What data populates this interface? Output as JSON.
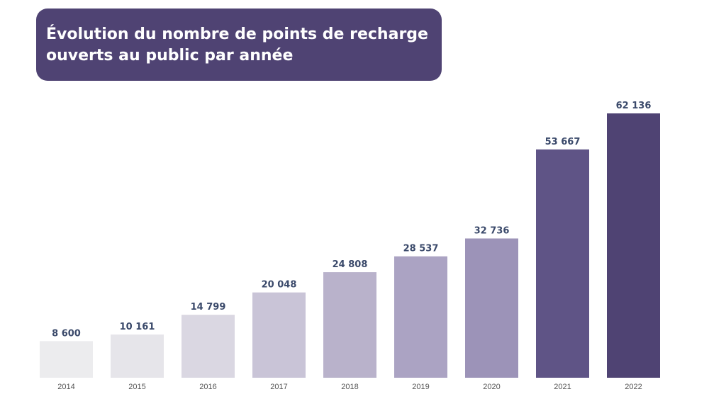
{
  "title_lines": [
    "Évolution du nombre de points de recharge",
    "ouverts au public par année"
  ],
  "chart_data": {
    "type": "bar",
    "title": "Évolution du nombre de points de recharge ouverts au public par année",
    "categories": [
      "2014",
      "2015",
      "2016",
      "2017",
      "2018",
      "2019",
      "2020",
      "2021",
      "2022"
    ],
    "values": [
      8600,
      10161,
      14799,
      20048,
      24808,
      28537,
      32736,
      53667,
      62136
    ],
    "value_labels": [
      "8 600",
      "10 161",
      "14 799",
      "20 048",
      "24 808",
      "28 537",
      "32 736",
      "53 667",
      "62 136"
    ],
    "bar_colors": [
      "#ececee",
      "#e6e5ea",
      "#dad7e2",
      "#c9c4d7",
      "#b9b2cb",
      "#aba3c3",
      "#9c93b8",
      "#5f5486",
      "#4f4373"
    ],
    "xlabel": "",
    "ylabel": "",
    "ylim": [
      0,
      65000
    ],
    "grid": false,
    "legend": "none",
    "label_color": "#3b4a6b",
    "tick_color": "#555555"
  }
}
